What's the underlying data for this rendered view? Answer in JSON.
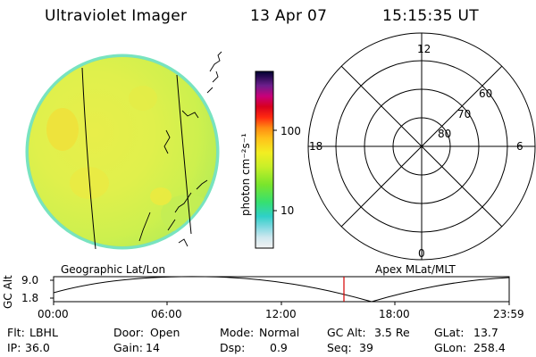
{
  "header": {
    "title": "Ultraviolet Imager",
    "date": "13 Apr 07",
    "time": "15:15:35 UT"
  },
  "colorbar": {
    "unit_label": "photon cm⁻²s⁻¹",
    "ticks": [
      "100",
      "10"
    ]
  },
  "polar_plot": {
    "clock_labels": [
      "12",
      "18",
      "6",
      "0"
    ],
    "lat_labels": [
      "60",
      "70",
      "80"
    ]
  },
  "timeline": {
    "y_axis_label": "GC Alt",
    "y_ticks": [
      "9.0",
      "1.8"
    ],
    "left_title": "Geographic Lat/Lon",
    "right_title": "Apex MLat/MLT",
    "x_ticks": [
      "00:00",
      "06:00",
      "12:00",
      "18:00",
      "23:59"
    ],
    "marker_color": "#d40000"
  },
  "info": {
    "row1": [
      {
        "label": "Flt:",
        "value": "LBHL"
      },
      {
        "label": "Door:",
        "value": "Open"
      },
      {
        "label": "Mode:",
        "value": "Normal"
      },
      {
        "label": "GC Alt:",
        "value": "3.5 Re"
      },
      {
        "label": "GLat:",
        "value": "13.7"
      }
    ],
    "row2": [
      {
        "label": "IP:",
        "value": "36.0"
      },
      {
        "label": "Gain:",
        "value": "14"
      },
      {
        "label": "Dsp:",
        "value": "0.9"
      },
      {
        "label": "Seq:",
        "value": "39"
      },
      {
        "label": "GLon:",
        "value": "258.4"
      }
    ]
  }
}
